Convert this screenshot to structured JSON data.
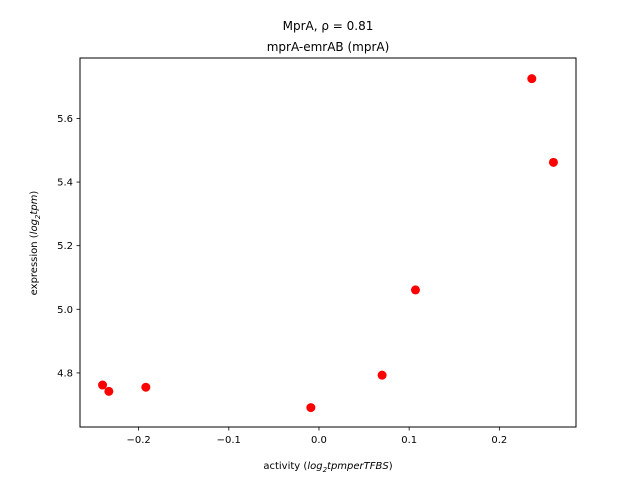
{
  "chart_data": {
    "type": "scatter",
    "title_line1": "MprA, ρ = 0.81",
    "title_line2": "mprA-emrAB (mprA)",
    "xlabel_prefix": "activity (",
    "xlabel_math": "log",
    "xlabel_sub": "2",
    "xlabel_math_rest": "tpmperTFBS",
    "xlabel_suffix": ")",
    "ylabel_prefix": "expression (",
    "ylabel_math": "log",
    "ylabel_sub": "2",
    "ylabel_math_rest": "tpm",
    "ylabel_suffix": ")",
    "xlim": [
      -0.265,
      0.285
    ],
    "ylim": [
      4.63,
      5.79
    ],
    "xticks": [
      -0.2,
      -0.1,
      0.0,
      0.1,
      0.2
    ],
    "xtick_labels": [
      "−0.2",
      "−0.1",
      "0.0",
      "0.1",
      "0.2"
    ],
    "yticks": [
      4.8,
      5.0,
      5.2,
      5.4,
      5.6
    ],
    "ytick_labels": [
      "4.8",
      "5.0",
      "5.2",
      "5.4",
      "5.6"
    ],
    "marker_color": "#ff0000",
    "grid": false,
    "points": [
      {
        "x": -0.24,
        "y": 4.762
      },
      {
        "x": -0.233,
        "y": 4.742
      },
      {
        "x": -0.192,
        "y": 4.755
      },
      {
        "x": -0.009,
        "y": 4.691
      },
      {
        "x": 0.07,
        "y": 4.793
      },
      {
        "x": 0.107,
        "y": 5.061
      },
      {
        "x": 0.236,
        "y": 5.725
      },
      {
        "x": 0.26,
        "y": 5.462
      }
    ]
  }
}
